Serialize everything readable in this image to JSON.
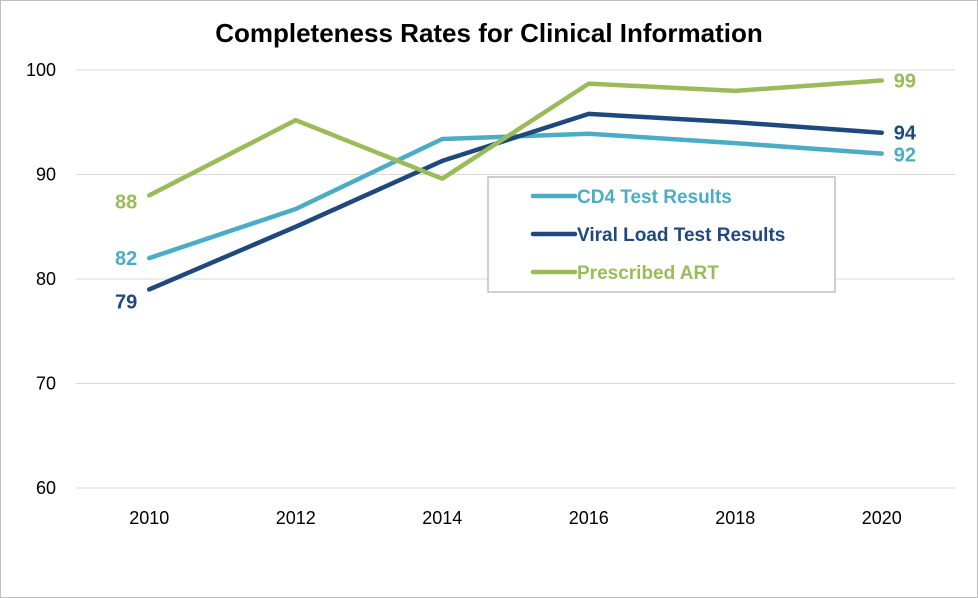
{
  "chart_data": {
    "type": "line",
    "title": "Completeness Rates for Clinical Information",
    "xlabel": "",
    "ylabel": "",
    "categories": [
      "2010",
      "2012",
      "2014",
      "2016",
      "2018",
      "2020"
    ],
    "y_ticks": [
      "60",
      "70",
      "80",
      "90",
      "100"
    ],
    "ylim": [
      60,
      100
    ],
    "grid": true,
    "legend_position": "center-right",
    "series": [
      {
        "name": "CD4 Test Results",
        "color": "#4bacc6",
        "values": [
          82,
          86.7,
          93.4,
          93.9,
          93,
          92
        ]
      },
      {
        "name": "Viral Load Test Results",
        "color": "#1f497d",
        "values": [
          79,
          85,
          91.3,
          95.8,
          95,
          94
        ]
      },
      {
        "name": "Prescribed ART",
        "color": "#9bbb59",
        "values": [
          88,
          95.2,
          89.6,
          98.7,
          98,
          99
        ]
      }
    ],
    "data_labels": [
      {
        "series": 0,
        "index": 0,
        "text": "82"
      },
      {
        "series": 0,
        "index": 5,
        "text": "92"
      },
      {
        "series": 1,
        "index": 0,
        "text": "79"
      },
      {
        "series": 1,
        "index": 5,
        "text": "94"
      },
      {
        "series": 2,
        "index": 0,
        "text": "88"
      },
      {
        "series": 2,
        "index": 5,
        "text": "99"
      }
    ]
  }
}
